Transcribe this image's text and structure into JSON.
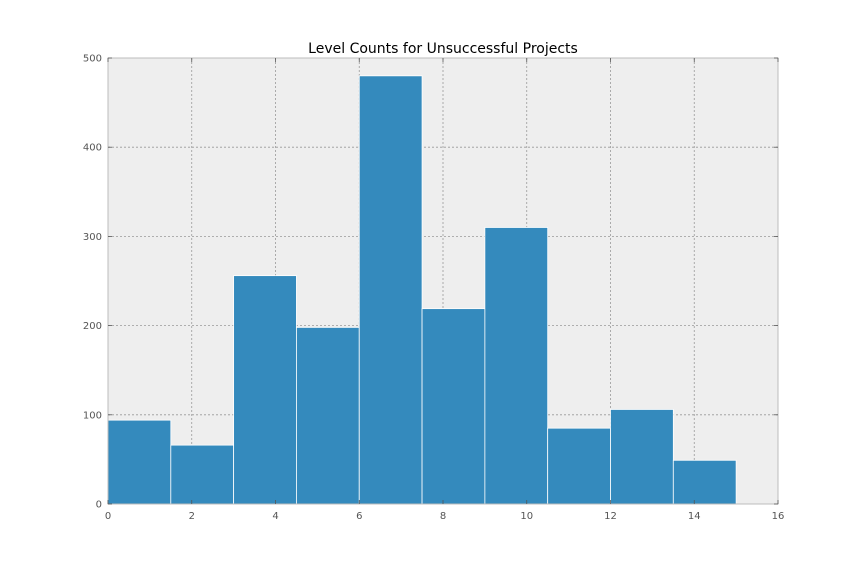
{
  "chart_data": {
    "type": "bar",
    "title": "Level Counts for Unsuccessful Projects",
    "xlabel": "",
    "ylabel": "",
    "xlim": [
      0,
      16
    ],
    "ylim": [
      0,
      500
    ],
    "x_ticks": [
      0,
      2,
      4,
      6,
      8,
      10,
      12,
      14,
      16
    ],
    "y_ticks": [
      0,
      100,
      200,
      300,
      400,
      500
    ],
    "grid": true,
    "bins": [
      {
        "start": 0.0,
        "end": 1.5,
        "value": 94
      },
      {
        "start": 1.5,
        "end": 3.0,
        "value": 66
      },
      {
        "start": 3.0,
        "end": 4.5,
        "value": 256
      },
      {
        "start": 4.5,
        "end": 6.0,
        "value": 198
      },
      {
        "start": 6.0,
        "end": 7.5,
        "value": 480
      },
      {
        "start": 7.5,
        "end": 9.0,
        "value": 219
      },
      {
        "start": 9.0,
        "end": 10.5,
        "value": 310
      },
      {
        "start": 10.5,
        "end": 12.0,
        "value": 85
      },
      {
        "start": 12.0,
        "end": 13.5,
        "value": 106
      },
      {
        "start": 13.5,
        "end": 15.0,
        "value": 49
      }
    ],
    "colors": {
      "bar": "#348abd",
      "background": "#eeeeee",
      "grid": "#999999"
    }
  }
}
